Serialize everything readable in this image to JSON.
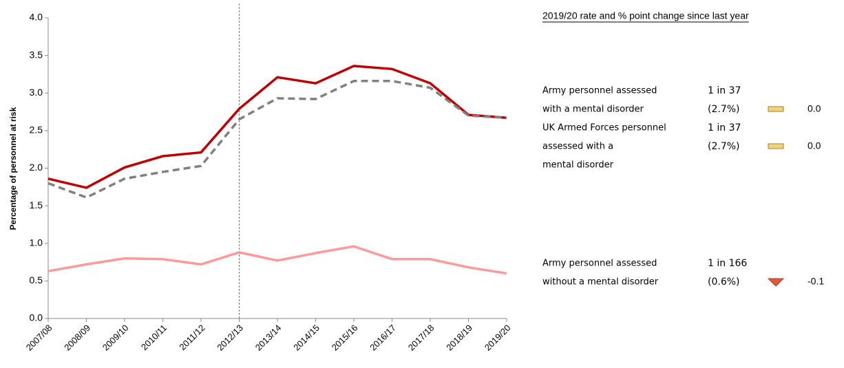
{
  "chart_data": {
    "type": "line",
    "y_label": "Percentage of personnel at risk",
    "categories": [
      "2007/08",
      "2008/09",
      "2009/10",
      "2010/11",
      "2011/12",
      "2012/13",
      "2013/14",
      "2014/15",
      "2015/16",
      "2016/17",
      "2017/18",
      "2018/19",
      "2019/20"
    ],
    "series": [
      {
        "color": "#c00000",
        "dashed": false,
        "values": [
          1.86,
          1.74,
          2.01,
          2.16,
          2.21,
          2.79,
          3.21,
          3.13,
          3.36,
          3.32,
          3.13,
          2.71,
          2.67
        ]
      },
      {
        "color": "#808080",
        "dashed": true,
        "values": [
          1.8,
          1.61,
          1.86,
          1.95,
          2.03,
          2.65,
          2.93,
          2.92,
          3.16,
          3.16,
          3.07,
          2.7,
          2.67
        ]
      },
      {
        "color": "#ff9999",
        "dashed": false,
        "values": [
          0.63,
          0.72,
          0.8,
          0.79,
          0.72,
          0.88,
          0.77,
          0.87,
          0.96,
          0.79,
          0.79,
          0.68,
          0.6
        ]
      }
    ],
    "vline": "2012/13",
    "ylim": [
      0,
      4
    ],
    "yticks": [
      {
        "value": 0,
        "label": "0.0"
      },
      {
        "value": 0.5,
        "label": "0.5"
      },
      {
        "value": 1,
        "label": "1.0"
      },
      {
        "value": 1.5,
        "label": "1.5"
      },
      {
        "value": 2,
        "label": "2.0"
      },
      {
        "value": 2.5,
        "label": "2.5"
      },
      {
        "value": 3,
        "label": "3.0"
      },
      {
        "value": 3.5,
        "label": "3.5"
      },
      {
        "value": 4,
        "label": "4.0"
      }
    ],
    "summary": {
      "title": "2019/20 rate and % point change since last year",
      "items": [
        {
          "lines": [
            "Army personnel assessed",
            "with a mental disorder"
          ],
          "rate": "1 in 37",
          "percent": "(2.7%)",
          "change": 0,
          "change_label": "0.0",
          "color": "#c00000"
        },
        {
          "lines": [
            "UK Armed Forces personnel",
            "assessed with a",
            "mental disorder"
          ],
          "rate": "1 in 37",
          "percent": "(2.7%)",
          "change": 0,
          "change_label": "0.0",
          "color": "#808080"
        },
        {
          "lines": [
            "Army personnel assessed",
            "without a mental disorder"
          ],
          "rate": "1 in 166",
          "percent": "(0.6%)",
          "change": -0.1,
          "change_label": "-0.1",
          "color": "#ff9999"
        }
      ]
    }
  }
}
